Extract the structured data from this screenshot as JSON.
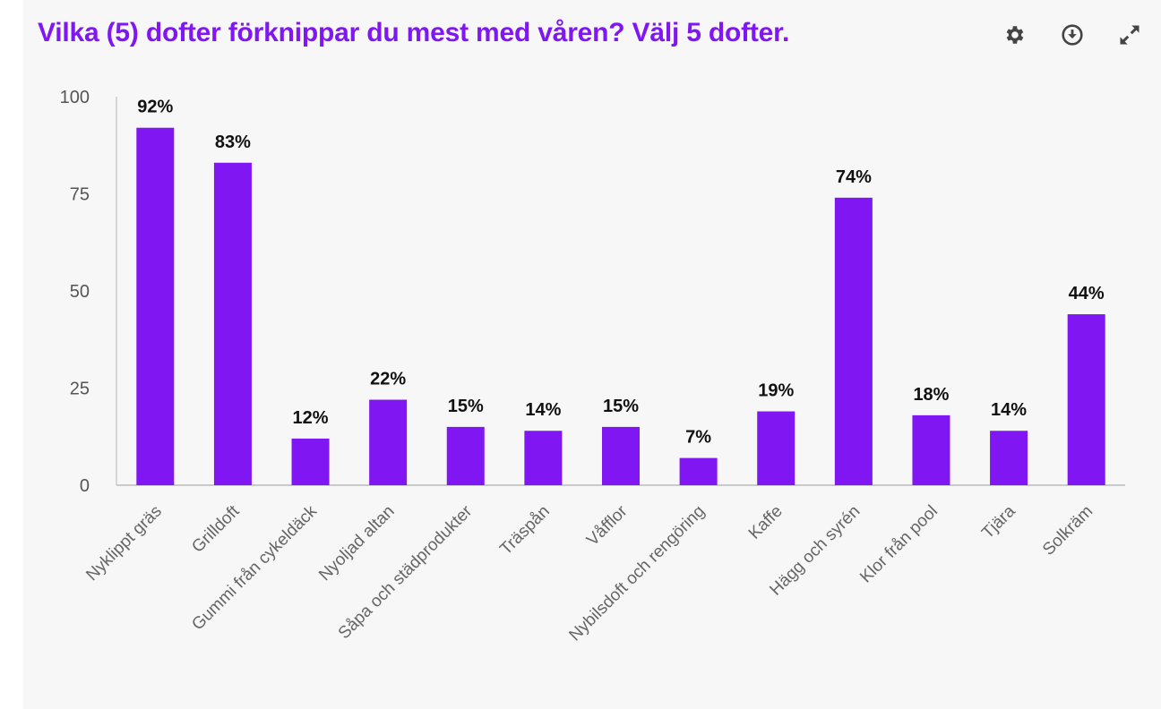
{
  "toolbar": {
    "settings_icon": "gear-icon",
    "download_icon": "download-circle-icon",
    "fullscreen_icon": "expand-icon"
  },
  "colors": {
    "accent": "#8016f2",
    "bar": "#8016f2"
  },
  "chart_data": {
    "type": "bar",
    "title": "Vilka (5) dofter förknippar du mest med våren? Välj 5 dofter.",
    "categories": [
      "Nyklippt gräs",
      "Grilldoft",
      "Gummi från cykeldäck",
      "Nyoljad altan",
      "Såpa och städprodukter",
      "Träspån",
      "Våfflor",
      "Nybilsdoft och rengöring",
      "Kaffe",
      "Hägg och syrén",
      "Klor från pool",
      "Tjära",
      "Solkräm"
    ],
    "values": [
      92,
      83,
      12,
      22,
      15,
      14,
      15,
      7,
      19,
      74,
      18,
      14,
      44
    ],
    "data_labels": [
      "92%",
      "83%",
      "12%",
      "22%",
      "15%",
      "14%",
      "15%",
      "7%",
      "19%",
      "74%",
      "18%",
      "14%",
      "44%"
    ],
    "yticks": [
      "0",
      "25",
      "50",
      "75",
      "100"
    ],
    "ylim": [
      0,
      100
    ],
    "xlabel": "",
    "ylabel": "",
    "grid": false
  }
}
